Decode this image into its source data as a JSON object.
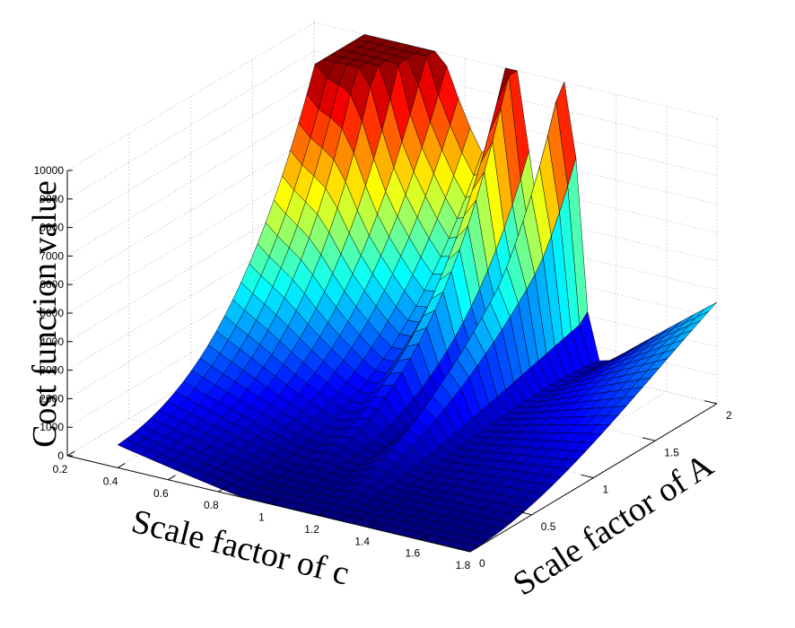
{
  "chart_data": {
    "type": "surface",
    "xlabel": "Scale factor of c",
    "ylabel": "Scale factor of A",
    "zlabel": "Cost function value",
    "xlim": [
      0.2,
      1.8
    ],
    "ylim": [
      0,
      2
    ],
    "zlim": [
      0,
      10000
    ],
    "x_ticks": [
      "0.2",
      "0.4",
      "0.6",
      "0.8",
      "1",
      "1.2",
      "1.4",
      "1.6",
      "1.8"
    ],
    "y_ticks": [
      "0",
      "0.5",
      "1",
      "1.5",
      "2"
    ],
    "z_ticks": [
      "0",
      "1000",
      "2000",
      "3000",
      "4000",
      "5000",
      "6000",
      "7000",
      "8000",
      "9000",
      "10000"
    ],
    "grid": true,
    "colormap": "jet",
    "x_range": [
      0.4,
      1.8
    ],
    "y_range": [
      0,
      2
    ],
    "grid_size": [
      31,
      31
    ],
    "peaks": [
      {
        "c": 0.55,
        "A": 2.0,
        "value": 10000
      },
      {
        "c": 1.0,
        "A": 2.0,
        "value": 8700
      },
      {
        "c": 1.2,
        "A": 2.0,
        "value": 7300
      }
    ],
    "trough_line": "cost near 0 along c ≈ 0.9 + 0.2·A",
    "edge_values": {
      "c0.4_A0": 800,
      "c1.8_A0": 0,
      "c1.8_A2": 4900
    }
  }
}
